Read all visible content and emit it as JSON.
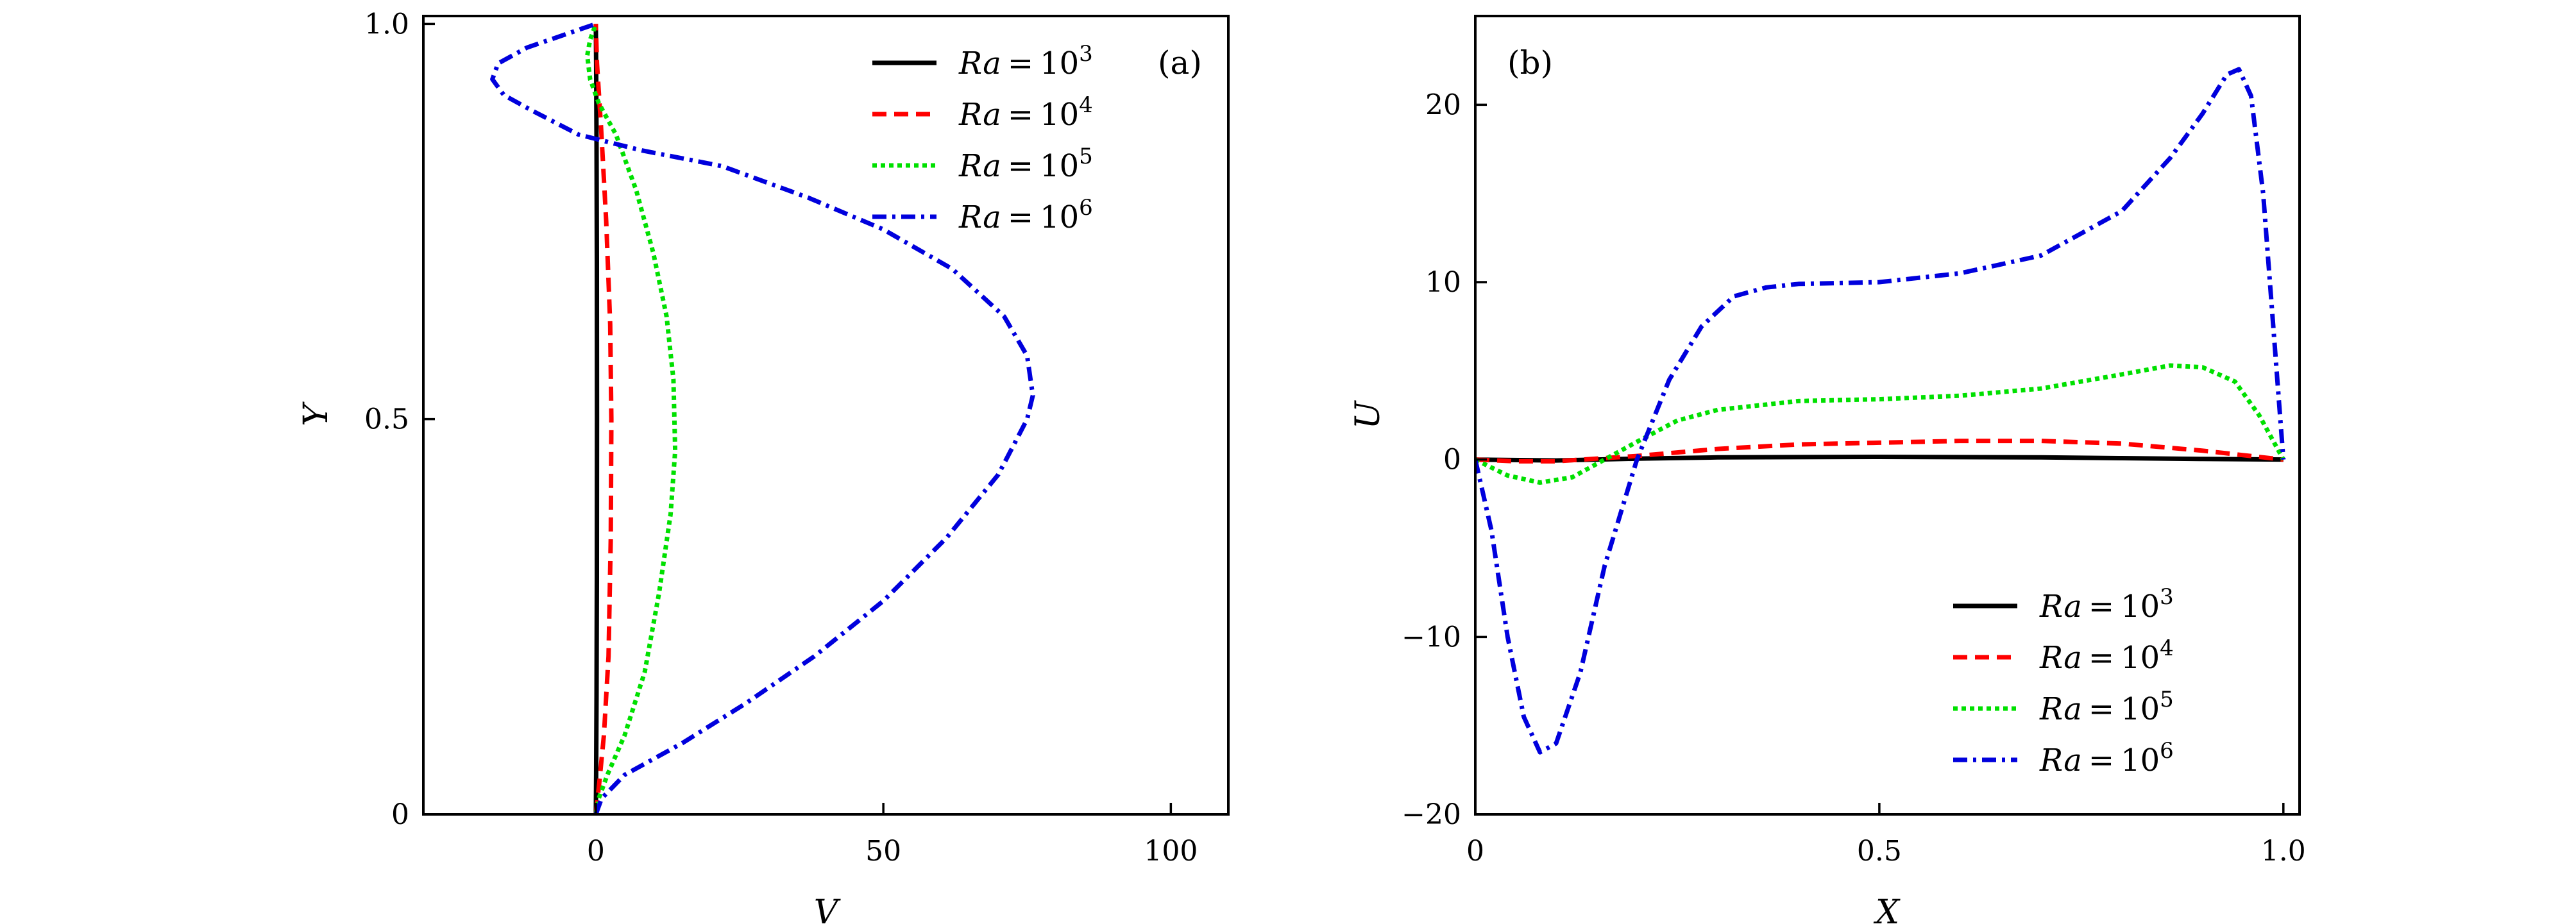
{
  "chart_data": [
    {
      "panel_label": "(a)",
      "type": "line",
      "xlabel": "V",
      "ylabel": "Y",
      "xlim": [
        -30,
        110
      ],
      "ylim": [
        0,
        1.01
      ],
      "xticks": [
        0,
        50,
        100
      ],
      "xtick_labels": [
        "0",
        "50",
        "100"
      ],
      "yticks": [
        0,
        0.5,
        1.0
      ],
      "ytick_labels": [
        "0",
        "0.5",
        "1.0"
      ],
      "legend_position": "top-right",
      "series": [
        {
          "name": "Ra = 10^3",
          "legend": {
            "prefix": "Ra",
            "eq": "=",
            "base": "10",
            "exp": "3"
          },
          "color": "#000000",
          "dash": "solid",
          "points": [
            [
              0,
              0
            ],
            [
              0.05,
              0.05
            ],
            [
              0.12,
              0.15
            ],
            [
              0.18,
              0.3
            ],
            [
              0.2,
              0.5
            ],
            [
              0.18,
              0.7
            ],
            [
              0.12,
              0.85
            ],
            [
              0.05,
              0.95
            ],
            [
              0,
              1.0
            ]
          ]
        },
        {
          "name": "Ra = 10^4",
          "legend": {
            "prefix": "Ra",
            "eq": "=",
            "base": "10",
            "exp": "4"
          },
          "color": "#ff0000",
          "dash": "dashed",
          "points": [
            [
              0,
              0
            ],
            [
              0.6,
              0.04
            ],
            [
              1.4,
              0.1
            ],
            [
              2.2,
              0.2
            ],
            [
              2.6,
              0.35
            ],
            [
              2.7,
              0.5
            ],
            [
              2.5,
              0.62
            ],
            [
              1.8,
              0.75
            ],
            [
              0.9,
              0.87
            ],
            [
              0.2,
              0.95
            ],
            [
              0,
              1.0
            ]
          ]
        },
        {
          "name": "Ra = 10^5",
          "legend": {
            "prefix": "Ra",
            "eq": "=",
            "base": "10",
            "exp": "5"
          },
          "color": "#00e000",
          "dash": "dotted",
          "points": [
            [
              0,
              0
            ],
            [
              0.5,
              0.02
            ],
            [
              2,
              0.05
            ],
            [
              5,
              0.1
            ],
            [
              8.5,
              0.18
            ],
            [
              11,
              0.28
            ],
            [
              13,
              0.38
            ],
            [
              13.8,
              0.46
            ],
            [
              13.5,
              0.55
            ],
            [
              12.3,
              0.63
            ],
            [
              10,
              0.71
            ],
            [
              7,
              0.79
            ],
            [
              3.5,
              0.86
            ],
            [
              0.5,
              0.9
            ],
            [
              -1,
              0.93
            ],
            [
              -1.5,
              0.96
            ],
            [
              -1,
              0.98
            ],
            [
              0,
              1.0
            ]
          ]
        },
        {
          "name": "Ra = 10^6",
          "legend": {
            "prefix": "Ra",
            "eq": "=",
            "base": "10",
            "exp": "6"
          },
          "color": "#0000dd",
          "dash": "dashdot",
          "points": [
            [
              0,
              0
            ],
            [
              1,
              0.02
            ],
            [
              5,
              0.05
            ],
            [
              15,
              0.09
            ],
            [
              26,
              0.14
            ],
            [
              38,
              0.2
            ],
            [
              50,
              0.27
            ],
            [
              61,
              0.35
            ],
            [
              70,
              0.43
            ],
            [
              75,
              0.5
            ],
            [
              76,
              0.53
            ],
            [
              75,
              0.58
            ],
            [
              71,
              0.63
            ],
            [
              62,
              0.69
            ],
            [
              50,
              0.74
            ],
            [
              37,
              0.78
            ],
            [
              22,
              0.82
            ],
            [
              8,
              0.84
            ],
            [
              -3,
              0.86
            ],
            [
              -11,
              0.89
            ],
            [
              -16,
              0.91
            ],
            [
              -18,
              0.93
            ],
            [
              -17,
              0.95
            ],
            [
              -12,
              0.97
            ],
            [
              -6,
              0.985
            ],
            [
              0,
              1.0
            ]
          ]
        }
      ]
    },
    {
      "panel_label": "(b)",
      "type": "line",
      "xlabel": "X",
      "ylabel": "U",
      "xlim": [
        0,
        1.02
      ],
      "ylim": [
        -20,
        25
      ],
      "xticks": [
        0,
        0.5,
        1.0
      ],
      "xtick_labels": [
        "0",
        "0.5",
        "1.0"
      ],
      "yticks": [
        -20,
        -10,
        0,
        10,
        20
      ],
      "ytick_labels": [
        "−20",
        "−10",
        "0",
        "10",
        "20"
      ],
      "legend_position": "lower-right",
      "series": [
        {
          "name": "Ra = 10^3",
          "legend": {
            "prefix": "Ra",
            "eq": "=",
            "base": "10",
            "exp": "3"
          },
          "color": "#000000",
          "dash": "solid",
          "points": [
            [
              0,
              0
            ],
            [
              0.1,
              -0.05
            ],
            [
              0.2,
              0.05
            ],
            [
              0.3,
              0.12
            ],
            [
              0.5,
              0.15
            ],
            [
              0.7,
              0.12
            ],
            [
              0.8,
              0.08
            ],
            [
              0.9,
              0.03
            ],
            [
              1.0,
              0
            ]
          ]
        },
        {
          "name": "Ra = 10^4",
          "legend": {
            "prefix": "Ra",
            "eq": "=",
            "base": "10",
            "exp": "4"
          },
          "color": "#ff0000",
          "dash": "dashed",
          "points": [
            [
              0,
              0
            ],
            [
              0.05,
              -0.1
            ],
            [
              0.1,
              -0.1
            ],
            [
              0.2,
              0.2
            ],
            [
              0.3,
              0.6
            ],
            [
              0.4,
              0.85
            ],
            [
              0.5,
              0.95
            ],
            [
              0.6,
              1.05
            ],
            [
              0.7,
              1.05
            ],
            [
              0.8,
              0.9
            ],
            [
              0.9,
              0.5
            ],
            [
              0.95,
              0.25
            ],
            [
              1.0,
              0
            ]
          ]
        },
        {
          "name": "Ra = 10^5",
          "legend": {
            "prefix": "Ra",
            "eq": "=",
            "base": "10",
            "exp": "5"
          },
          "color": "#00e000",
          "dash": "dotted",
          "points": [
            [
              0,
              0
            ],
            [
              0.04,
              -0.9
            ],
            [
              0.08,
              -1.3
            ],
            [
              0.12,
              -1
            ],
            [
              0.16,
              0
            ],
            [
              0.2,
              1
            ],
            [
              0.25,
              2.2
            ],
            [
              0.3,
              2.8
            ],
            [
              0.4,
              3.3
            ],
            [
              0.5,
              3.4
            ],
            [
              0.6,
              3.6
            ],
            [
              0.7,
              4
            ],
            [
              0.8,
              4.8
            ],
            [
              0.86,
              5.3
            ],
            [
              0.9,
              5.2
            ],
            [
              0.94,
              4.4
            ],
            [
              0.97,
              2.5
            ],
            [
              1.0,
              0
            ]
          ]
        },
        {
          "name": "Ra = 10^6",
          "legend": {
            "prefix": "Ra",
            "eq": "=",
            "base": "10",
            "exp": "6"
          },
          "color": "#0000dd",
          "dash": "dashdot",
          "points": [
            [
              0,
              0
            ],
            [
              0.02,
              -4
            ],
            [
              0.04,
              -10
            ],
            [
              0.06,
              -14.5
            ],
            [
              0.08,
              -16.5
            ],
            [
              0.1,
              -16
            ],
            [
              0.13,
              -12
            ],
            [
              0.16,
              -6
            ],
            [
              0.2,
              0
            ],
            [
              0.24,
              4.5
            ],
            [
              0.28,
              7.5
            ],
            [
              0.32,
              9.2
            ],
            [
              0.36,
              9.7
            ],
            [
              0.4,
              9.9
            ],
            [
              0.5,
              10
            ],
            [
              0.6,
              10.5
            ],
            [
              0.7,
              11.5
            ],
            [
              0.8,
              14
            ],
            [
              0.86,
              17
            ],
            [
              0.9,
              19.5
            ],
            [
              0.93,
              21.7
            ],
            [
              0.945,
              22
            ],
            [
              0.96,
              20.5
            ],
            [
              0.975,
              15
            ],
            [
              0.99,
              6
            ],
            [
              1.0,
              0
            ]
          ]
        }
      ]
    }
  ]
}
